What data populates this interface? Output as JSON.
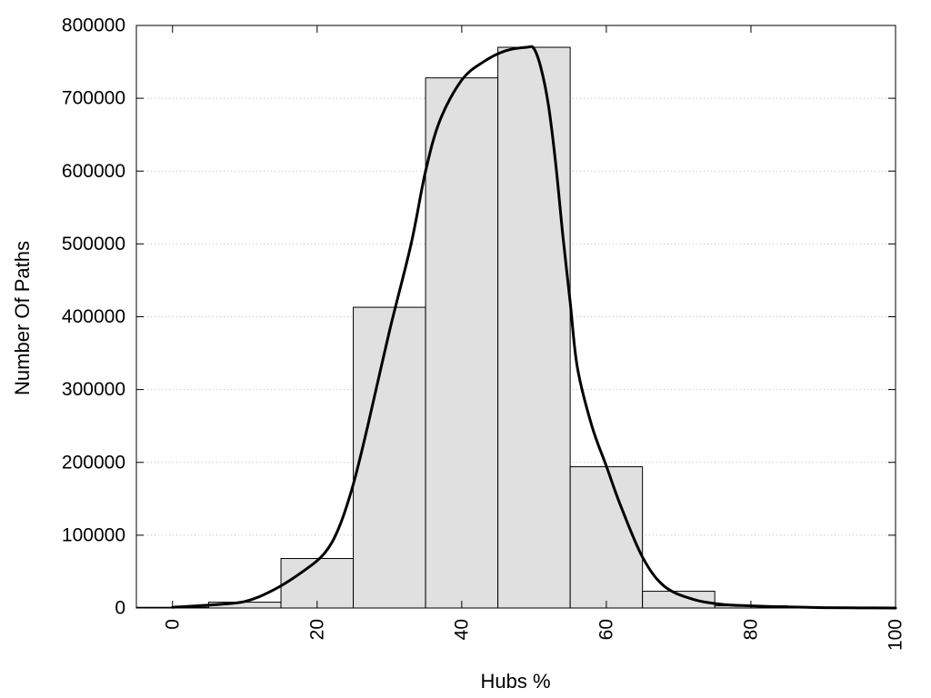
{
  "chart_data": {
    "type": "bar",
    "subtype": "histogram-with-fitted-curve",
    "title": "",
    "xlabel": "Hubs %",
    "ylabel": "Number Of Paths",
    "xlim": [
      -5,
      100
    ],
    "ylim": [
      0,
      800000
    ],
    "x_ticks": [
      0,
      20,
      40,
      60,
      80,
      100
    ],
    "x_tick_labels": [
      "0",
      "20",
      "40",
      "60",
      "80",
      "100"
    ],
    "y_ticks": [
      0,
      100000,
      200000,
      300000,
      400000,
      500000,
      600000,
      700000,
      800000
    ],
    "y_tick_labels": [
      "0",
      "100000",
      "200000",
      "300000",
      "400000",
      "500000",
      "600000",
      "700000",
      "800000"
    ],
    "x_tick_label_rotation": -90,
    "grid": "horizontal-dotted",
    "legend": "none",
    "bin_width": 10,
    "bins": [
      {
        "center": 0,
        "value": 1000
      },
      {
        "center": 10,
        "value": 8000
      },
      {
        "center": 20,
        "value": 68000
      },
      {
        "center": 30,
        "value": 413000
      },
      {
        "center": 40,
        "value": 728000
      },
      {
        "center": 50,
        "value": 770000
      },
      {
        "center": 60,
        "value": 194000
      },
      {
        "center": 70,
        "value": 23000
      },
      {
        "center": 80,
        "value": 3000
      },
      {
        "center": 90,
        "value": 500
      },
      {
        "center": 100,
        "value": 0
      }
    ],
    "curve": {
      "x": [
        0,
        5,
        10,
        14,
        18,
        21,
        23,
        25,
        27,
        30,
        33,
        35,
        37,
        40,
        43,
        46,
        49,
        50,
        51,
        52,
        53,
        54,
        55,
        56,
        58,
        60,
        62,
        65,
        68,
        72,
        76,
        80,
        85,
        90,
        95,
        100
      ],
      "y": [
        1000,
        4000,
        9000,
        25000,
        50000,
        75000,
        110000,
        170000,
        250000,
        380000,
        500000,
        600000,
        670000,
        725000,
        750000,
        765000,
        770000,
        768000,
        740000,
        690000,
        610000,
        510000,
        420000,
        330000,
        250000,
        195000,
        140000,
        70000,
        30000,
        12000,
        5000,
        3000,
        1500,
        500,
        200,
        0
      ]
    },
    "colors": {
      "bar_fill": "#e0e0e0",
      "bar_stroke": "#000000",
      "curve": "#000000",
      "grid": "#bbbbbb"
    }
  }
}
